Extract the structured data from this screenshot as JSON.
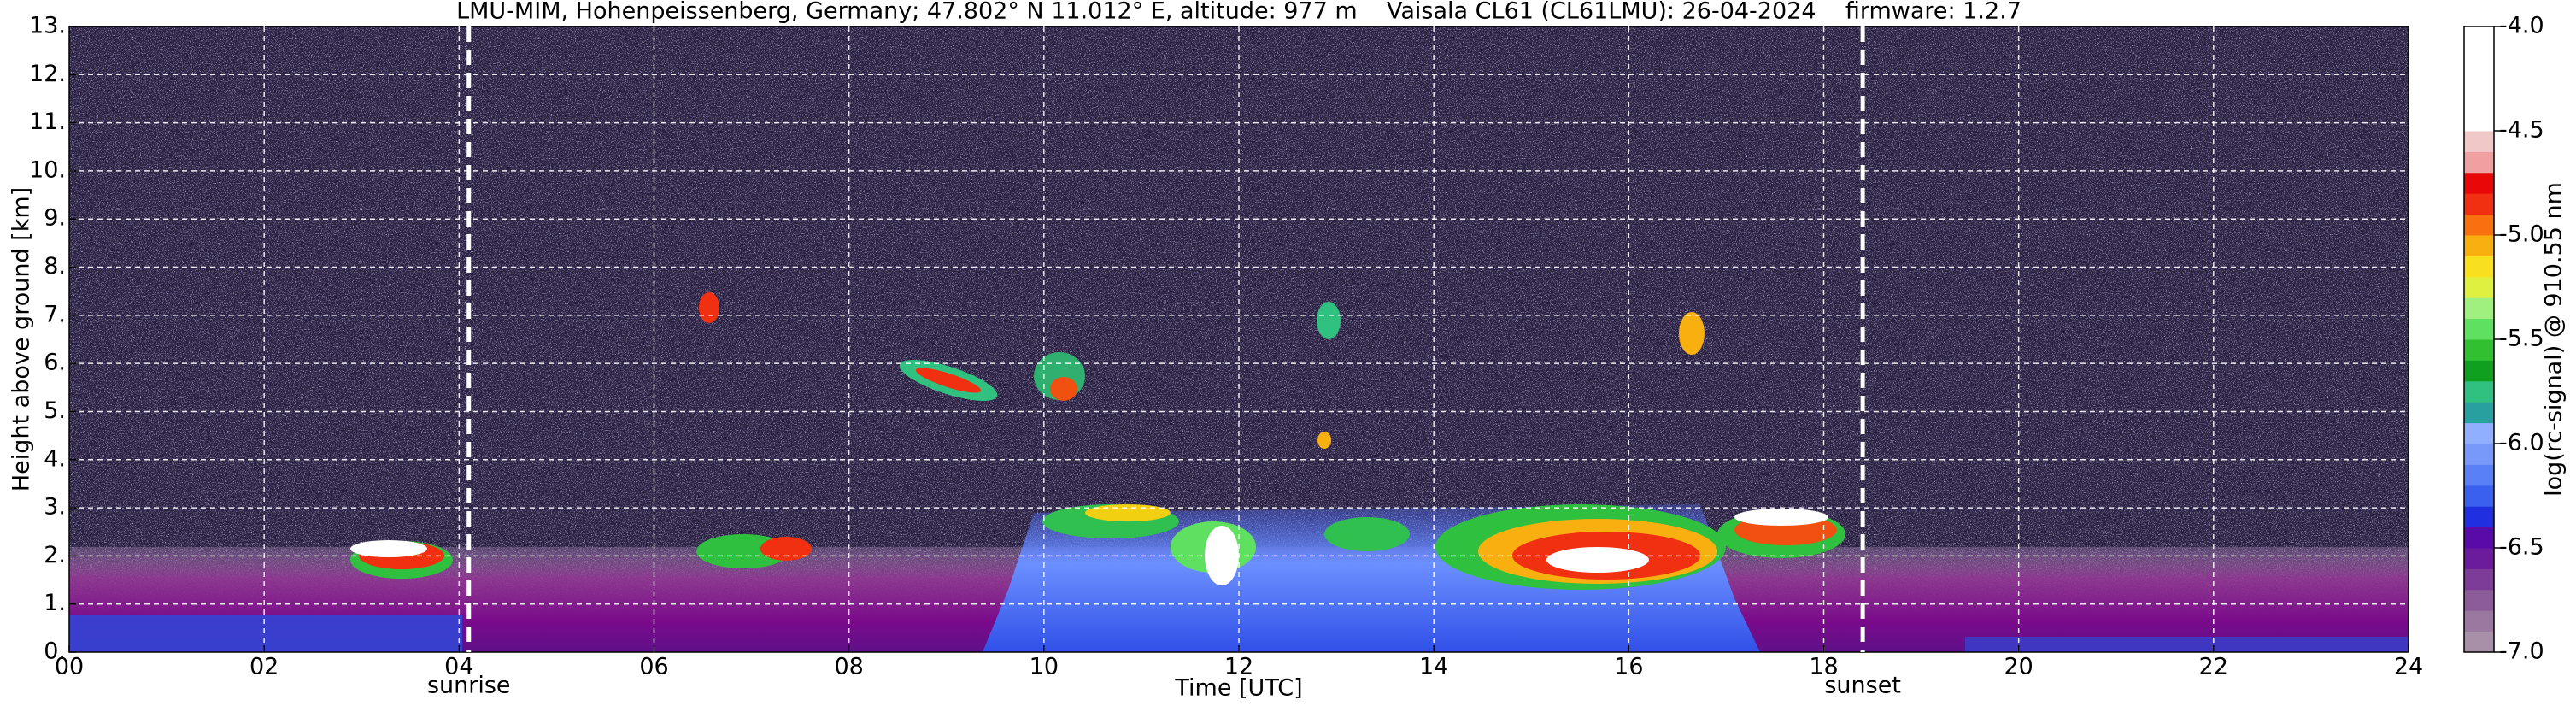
{
  "chart_data": {
    "type": "heatmap",
    "title": "LMU-MIM, Hohenpeissenberg, Germany; 47.802° N 11.012° E, altitude: 977 m    Vaisala CL61 (CL61LMU): 26-04-2024    firmware: 1.2.7",
    "xlabel": "Time [UTC]",
    "ylabel": "Height above ground [km]",
    "xlim": [
      0,
      24
    ],
    "xticks": [
      {
        "value": 0,
        "label": "00"
      },
      {
        "value": 2,
        "label": "02"
      },
      {
        "value": 4,
        "label": "04"
      },
      {
        "value": 6,
        "label": "06"
      },
      {
        "value": 8,
        "label": "08"
      },
      {
        "value": 10,
        "label": "10"
      },
      {
        "value": 12,
        "label": "12"
      },
      {
        "value": 14,
        "label": "14"
      },
      {
        "value": 16,
        "label": "16"
      },
      {
        "value": 18,
        "label": "18"
      },
      {
        "value": 20,
        "label": "20"
      },
      {
        "value": 22,
        "label": "22"
      },
      {
        "value": 24,
        "label": "24"
      }
    ],
    "ylim": [
      0,
      13
    ],
    "yticks": [
      {
        "value": 0,
        "label": "0."
      },
      {
        "value": 1,
        "label": "1."
      },
      {
        "value": 2,
        "label": "2."
      },
      {
        "value": 3,
        "label": "3."
      },
      {
        "value": 4,
        "label": "4."
      },
      {
        "value": 5,
        "label": "5."
      },
      {
        "value": 6,
        "label": "6."
      },
      {
        "value": 7,
        "label": "7."
      },
      {
        "value": 8,
        "label": "8."
      },
      {
        "value": 9,
        "label": "9."
      },
      {
        "value": 10,
        "label": "10."
      },
      {
        "value": 11,
        "label": "11."
      },
      {
        "value": 12,
        "label": "12."
      },
      {
        "value": 13,
        "label": "13."
      }
    ],
    "grid": true,
    "annotations": [
      {
        "text": "sunrise",
        "x": 4.1
      },
      {
        "text": "sunset",
        "x": 18.4
      }
    ],
    "colorbar": {
      "label": "log(rc-signal) @ 910.55 nm",
      "lim": [
        -7,
        -4
      ],
      "ticks": [
        {
          "value": -7,
          "label": "-7.0"
        },
        -6.5,
        {
          "value": -6,
          "label": "-6.0"
        },
        -5.5,
        {
          "value": -5,
          "label": "-5.0"
        },
        -4.5,
        {
          "value": -4,
          "label": "-4.0"
        }
      ],
      "colors": [
        "#a890a8",
        "#9a78a0",
        "#8c5c98",
        "#7c3c98",
        "#6a1c9c",
        "#5a0aa8",
        "#2030e0",
        "#3a60f0",
        "#5a80f8",
        "#7898fa",
        "#90b0ff",
        "#28a0a0",
        "#30c080",
        "#10a020",
        "#30c030",
        "#60e060",
        "#a0f080",
        "#e0f040",
        "#f8e020",
        "#f8b010",
        "#f87010",
        "#f03010",
        "#e80808",
        "#f0a0a0",
        "#f0c8c8",
        "#ffffff",
        "#ffffff",
        "#ffffff",
        "#ffffff",
        "#ffffff"
      ]
    }
  }
}
